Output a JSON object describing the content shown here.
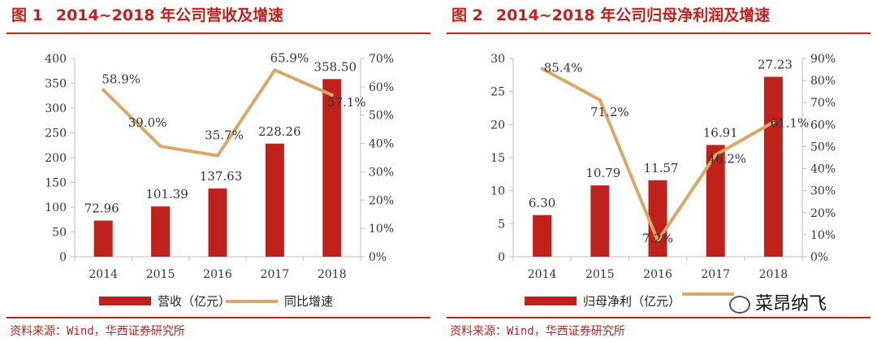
{
  "colors": {
    "bar": "#c0221b",
    "line": "#d9a866",
    "accent": "#c0221b",
    "axis": "#bdbdbd",
    "text": "#333333"
  },
  "panels": [
    {
      "fig_label": "图 1",
      "title": "2014~2018 年公司营收及增速",
      "source": "资料来源：Wind，华西证券研究所",
      "legend": {
        "bar_label": "营收（亿元）",
        "line_label": "同比增速"
      }
    },
    {
      "fig_label": "图 2",
      "title": "2014~2018 年公司归母净利润及增速",
      "source": "资料来源：Wind，华西证券研究所",
      "legend": {
        "bar_label": "归母净利（亿元）",
        "line_label": ""
      },
      "watermark": "菜昂纳飞"
    }
  ],
  "chart_data": [
    {
      "type": "bar",
      "categories": [
        "2014",
        "2015",
        "2016",
        "2017",
        "2018"
      ],
      "series": [
        {
          "name": "营收（亿元）",
          "type": "bar",
          "axis": "left",
          "values": [
            72.96,
            101.39,
            137.63,
            228.26,
            358.5
          ],
          "labels": [
            "72.96",
            "101.39",
            "137.63",
            "228.26",
            "358.50"
          ]
        },
        {
          "name": "同比增速",
          "type": "line",
          "axis": "right",
          "values": [
            58.9,
            39.0,
            35.7,
            65.9,
            57.1
          ],
          "labels": [
            "58.9%",
            "39.0%",
            "35.7%",
            "65.9%",
            "57.1%"
          ]
        }
      ],
      "ylim_left": [
        0,
        400
      ],
      "yticks_left": [
        "0",
        "50",
        "100",
        "150",
        "200",
        "250",
        "300",
        "350",
        "400"
      ],
      "ylim_right": [
        0,
        70
      ],
      "yticks_right": [
        "0%",
        "10%",
        "20%",
        "30%",
        "40%",
        "50%",
        "60%",
        "70%"
      ],
      "grid": false,
      "legend_position": "bottom"
    },
    {
      "type": "bar",
      "categories": [
        "2014",
        "2015",
        "2016",
        "2017",
        "2018"
      ],
      "series": [
        {
          "name": "归母净利（亿元）",
          "type": "bar",
          "axis": "left",
          "values": [
            6.3,
            10.79,
            11.57,
            16.91,
            27.23
          ],
          "labels": [
            "6.30",
            "10.79",
            "11.57",
            "16.91",
            "27.23"
          ]
        },
        {
          "type": "line",
          "axis": "right",
          "values": [
            85.4,
            71.2,
            7.2,
            46.2,
            61.1
          ],
          "labels": [
            "85.4%",
            "71.2%",
            "7.2%",
            "46.2%",
            "61.1%"
          ]
        }
      ],
      "ylim_left": [
        0,
        30
      ],
      "yticks_left": [
        "0",
        "5",
        "10",
        "15",
        "20",
        "25",
        "30"
      ],
      "ylim_right": [
        0,
        90
      ],
      "yticks_right": [
        "0%",
        "10%",
        "20%",
        "30%",
        "40%",
        "50%",
        "60%",
        "70%",
        "80%",
        "90%"
      ],
      "grid": false,
      "legend_position": "bottom"
    }
  ]
}
